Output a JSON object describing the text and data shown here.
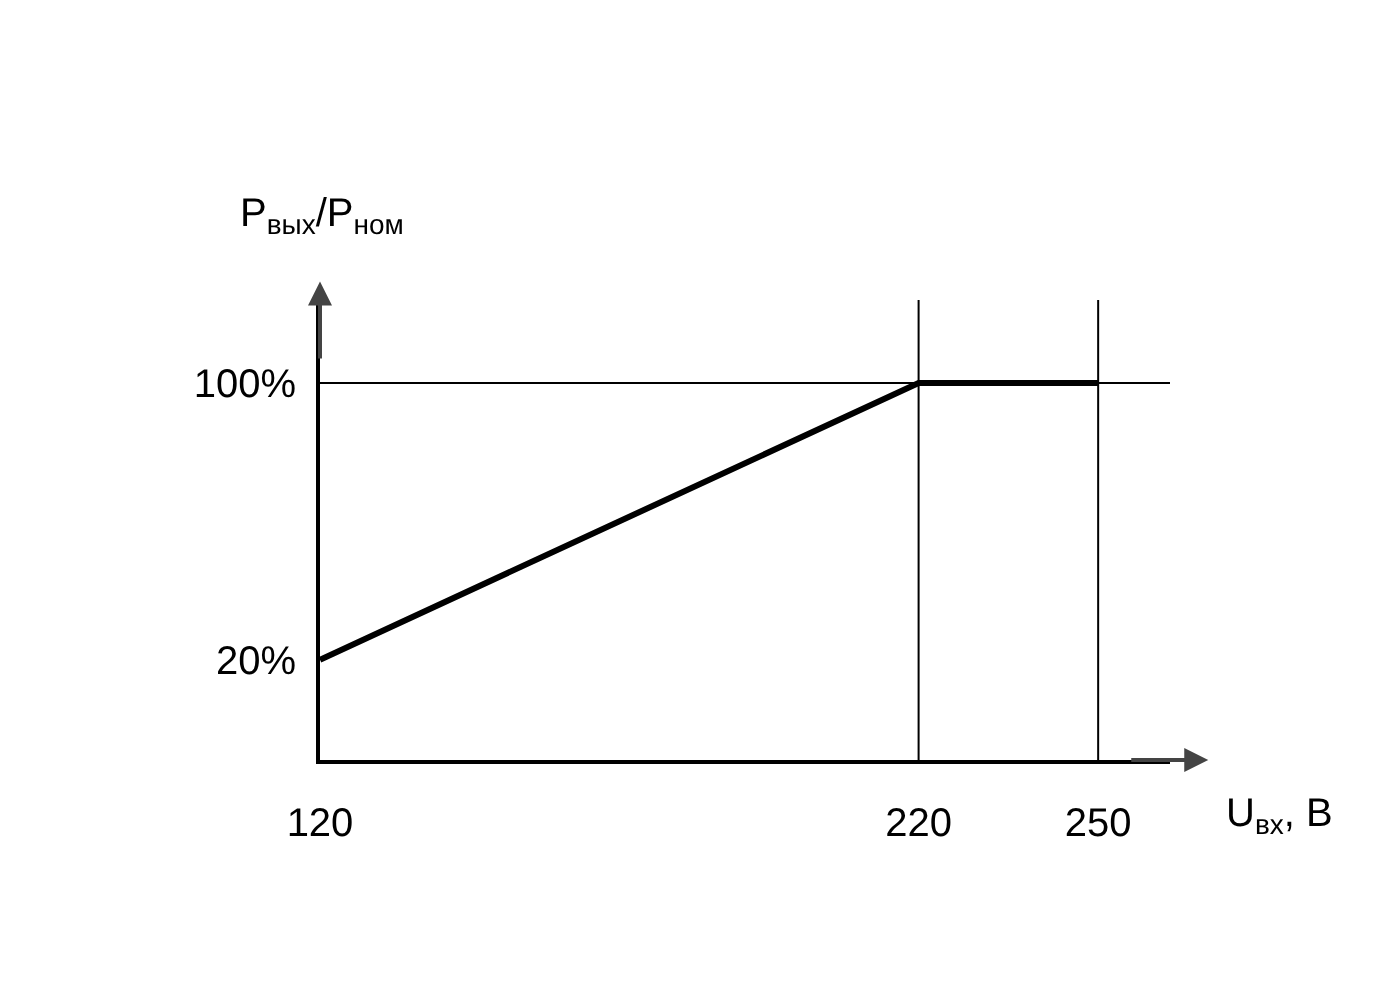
{
  "chart_data": {
    "type": "line",
    "xlabel": "U$_{вх}$, В",
    "ylabel": "P$_{вых}$/P$_{ном}$",
    "x": [
      120,
      220,
      250
    ],
    "series": [
      {
        "color": "#000000",
        "values": [
          20,
          100,
          100
        ]
      }
    ],
    "xlim": [
      120,
      262
    ],
    "xticks": [
      120,
      220,
      250
    ],
    "ylim": [
      -9,
      124
    ],
    "yticks": [
      {
        "value": 20,
        "label": "20%"
      },
      {
        "value": 100,
        "label": "100%"
      }
    ],
    "ref_lines": [
      {
        "axis": "x",
        "value": 220,
        "color": "#000000"
      },
      {
        "axis": "x",
        "value": 250,
        "color": "#000000"
      },
      {
        "axis": "y",
        "value": 100,
        "color": "#000000"
      }
    ],
    "marker": "none",
    "line_style": "solid"
  }
}
